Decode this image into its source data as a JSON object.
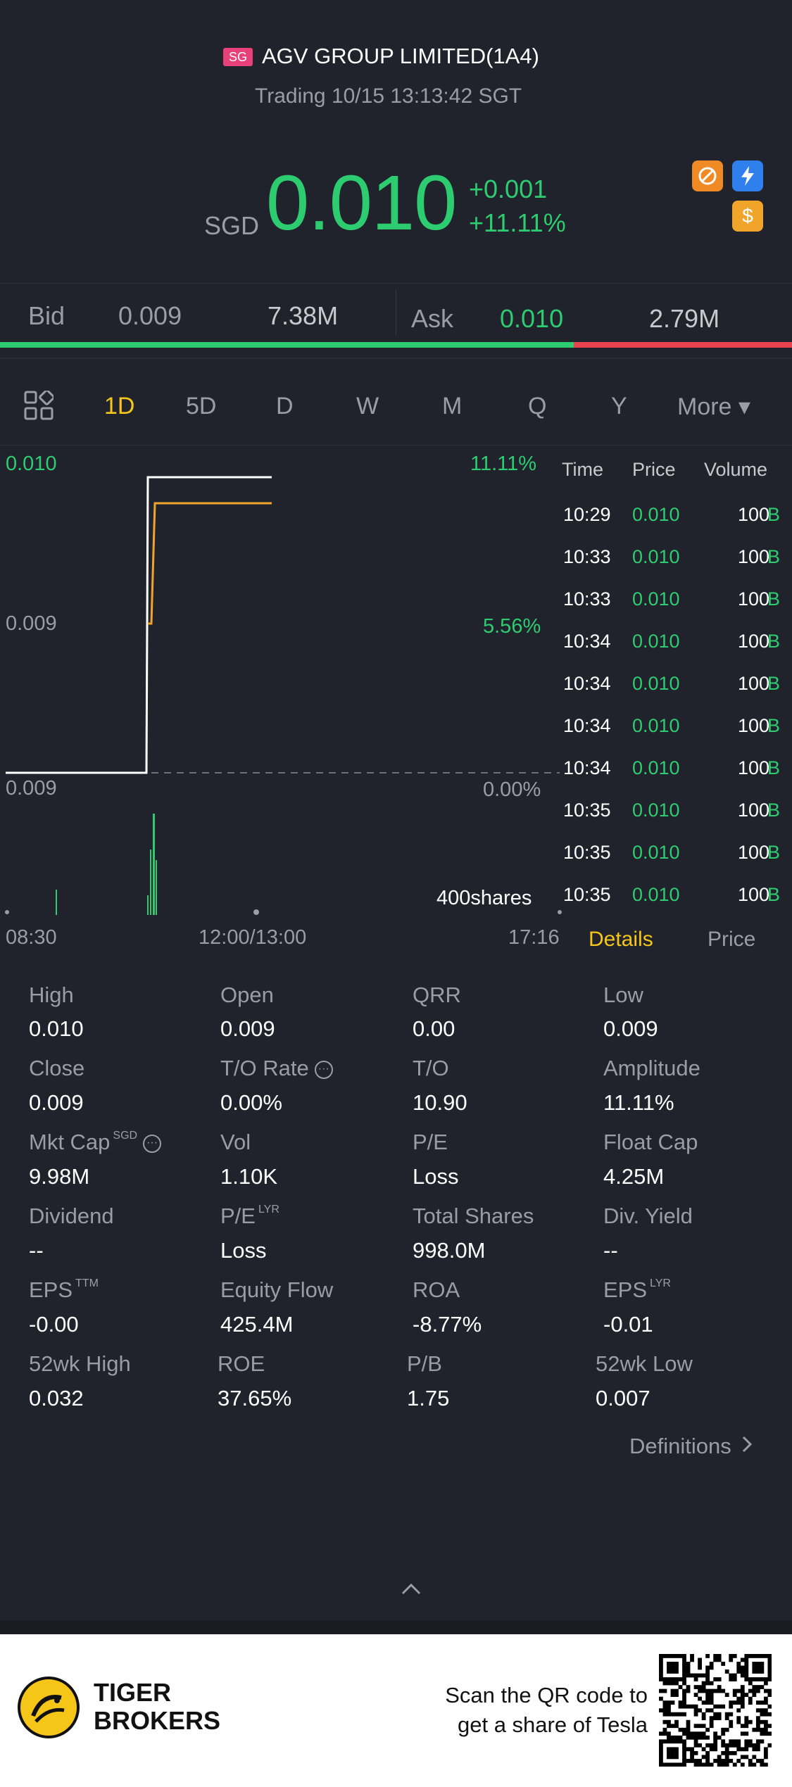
{
  "header": {
    "market_badge": "SG",
    "title": "AGV GROUP LIMITED(1A4)",
    "status": "Trading 10/15 13:13:42 SGT"
  },
  "quote": {
    "currency": "SGD",
    "price": "0.010",
    "change": "+0.001",
    "change_pct": "+11.11%",
    "icons": [
      "no-short-icon",
      "lightning-icon",
      "dollar-icon"
    ]
  },
  "bidask": {
    "bid_label": "Bid",
    "bid_price": "0.009",
    "bid_size": "7.38M",
    "ask_label": "Ask",
    "ask_price": "0.010",
    "ask_size": "2.79M"
  },
  "periods": {
    "items": [
      "1D",
      "5D",
      "D",
      "W",
      "M",
      "Q",
      "Y",
      "More ▾"
    ],
    "active": "1D"
  },
  "chart": {
    "y_top_label": "0.010",
    "y_mid_label": "0.009",
    "y_base_label": "0.009",
    "pct_top": "11.11%",
    "pct_mid": "5.56%",
    "pct_base": "0.00%",
    "volume_label": "400shares",
    "x_labels": [
      "08:30",
      "12:00/13:00",
      "17:16"
    ]
  },
  "trades": {
    "headers": [
      "Time",
      "Price",
      "Volume"
    ],
    "rows": [
      {
        "time": "10:29",
        "price": "0.010",
        "vol": "100",
        "side": "B"
      },
      {
        "time": "10:33",
        "price": "0.010",
        "vol": "100",
        "side": "B"
      },
      {
        "time": "10:33",
        "price": "0.010",
        "vol": "100",
        "side": "B"
      },
      {
        "time": "10:34",
        "price": "0.010",
        "vol": "100",
        "side": "B"
      },
      {
        "time": "10:34",
        "price": "0.010",
        "vol": "100",
        "side": "B"
      },
      {
        "time": "10:34",
        "price": "0.010",
        "vol": "100",
        "side": "B"
      },
      {
        "time": "10:34",
        "price": "0.010",
        "vol": "100",
        "side": "B"
      },
      {
        "time": "10:35",
        "price": "0.010",
        "vol": "100",
        "side": "B"
      },
      {
        "time": "10:35",
        "price": "0.010",
        "vol": "100",
        "side": "B"
      },
      {
        "time": "10:35",
        "price": "0.010",
        "vol": "100",
        "side": "B"
      }
    ],
    "tab_details": "Details",
    "tab_price": "Price"
  },
  "details": {
    "high_l": "High",
    "high_v": "0.010",
    "open_l": "Open",
    "open_v": "0.009",
    "qrr_l": "QRR",
    "qrr_v": "0.00",
    "low_l": "Low",
    "low_v": "0.009",
    "close_l": "Close",
    "close_v": "0.009",
    "tor_l": "T/O Rate",
    "tor_v": "0.00%",
    "to_l": "T/O",
    "to_v": "10.90",
    "amp_l": "Amplitude",
    "amp_v": "11.11%",
    "mktcap_l": "Mkt Cap",
    "mktcap_sup": "SGD",
    "mktcap_v": "9.98M",
    "vol_l": "Vol",
    "vol_v": "1.10K",
    "pe_l": "P/E",
    "pe_v": "Loss",
    "floatcap_l": "Float Cap",
    "floatcap_v": "4.25M",
    "div_l": "Dividend",
    "div_v": "--",
    "pelyr_l": "P/E",
    "pelyr_sup": "LYR",
    "pelyr_v": "Loss",
    "shares_l": "Total Shares",
    "shares_v": "998.0M",
    "divy_l": "Div. Yield",
    "divy_v": "--",
    "eps_l": "EPS",
    "eps_sup": "TTM",
    "eps_v": "-0.00",
    "eqflow_l": "Equity Flow",
    "eqflow_v": "425.4M",
    "roa_l": "ROA",
    "roa_v": "-8.77%",
    "epslyr_l": "EPS",
    "epslyr_sup": "LYR",
    "epslyr_v": "-0.01",
    "h52_l": "52wk High",
    "h52_v": "0.032",
    "roe_l": "ROE",
    "roe_v": "37.65%",
    "pb_l": "P/B",
    "pb_v": "1.75",
    "l52_l": "52wk Low",
    "l52_v": "0.007",
    "definitions": "Definitions"
  },
  "footer": {
    "brand_line1": "TIGER",
    "brand_line2": "BROKERS",
    "scan_line1": "Scan the QR code to",
    "scan_line2": "get a share of Tesla"
  }
}
